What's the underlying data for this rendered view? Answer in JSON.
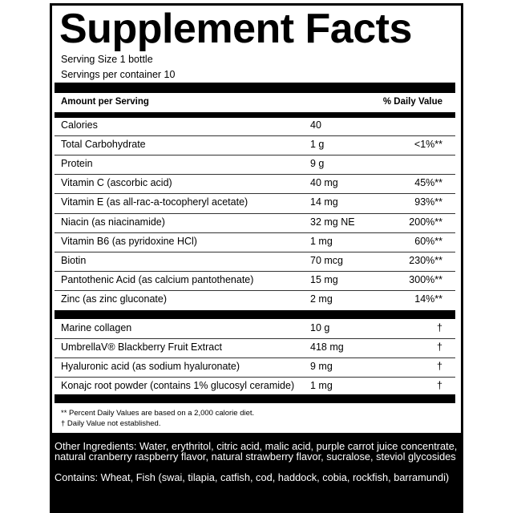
{
  "header": {
    "title": "Supplement Facts",
    "serving_size": "Serving Size 1 bottle",
    "servings_per_container": "Servings per container 10"
  },
  "column_headers": {
    "amount": "Amount per Serving",
    "daily_value": "% Daily Value"
  },
  "groups": [
    [
      {
        "name": "Calories",
        "amount": "40"
      },
      {
        "name": "Total Carbohydrate",
        "amount": "1 g",
        "dv": "<1%**"
      },
      {
        "name": "Protein",
        "amount": "9 g"
      },
      {
        "name": "Vitamin C (ascorbic acid)",
        "amount": "40 mg",
        "dv": "45%**"
      },
      {
        "name": "Vitamin E (as all-rac-a-tocopheryl acetate)",
        "amount": "14 mg",
        "dv": "93%**"
      },
      {
        "name": "Niacin (as niacinamide)",
        "amount": "32 mg NE",
        "dv": "200%**"
      },
      {
        "name": "Vitamin B6 (as pyridoxine HCl)",
        "amount": "1 mg",
        "dv": "60%**"
      },
      {
        "name": "Biotin",
        "amount": "70 mcg",
        "dv": "230%**"
      },
      {
        "name": "Pantothenic Acid (as calcium pantothenate)",
        "amount": "15 mg",
        "dv": "300%**"
      },
      {
        "name": "Zinc (as zinc gluconate)",
        "amount": "2 mg",
        "dv": "14%**"
      }
    ],
    [
      {
        "name": "Marine collagen",
        "amount": "10 g",
        "dv": "†"
      },
      {
        "name": "UmbrellaV® Blackberry Fruit Extract",
        "amount": "418 mg",
        "dv": "†"
      },
      {
        "name": "Hyaluronic acid (as sodium hyaluronate)",
        "amount": "9 mg",
        "dv": "†"
      },
      {
        "name": "Konajc root powder (contains 1% glucosyl ceramide)",
        "amount": "1 mg",
        "dv": "†"
      }
    ]
  ],
  "footnotes": [
    "** Percent Daily Values are based on a 2,000 calorie diet.",
    "† Daily Value not established."
  ],
  "other_ingredients": "Other Ingredients: Water, erythritol, citric acid, malic acid, purple carrot juice concentrate, natural cranberry raspberry flavor, natural strawberry flavor, sucralose, steviol glycosides",
  "contains": "Contains: Wheat, Fish (swai, tilapia, catfish, cod, haddock, cobia, rockfish, barramundi)"
}
